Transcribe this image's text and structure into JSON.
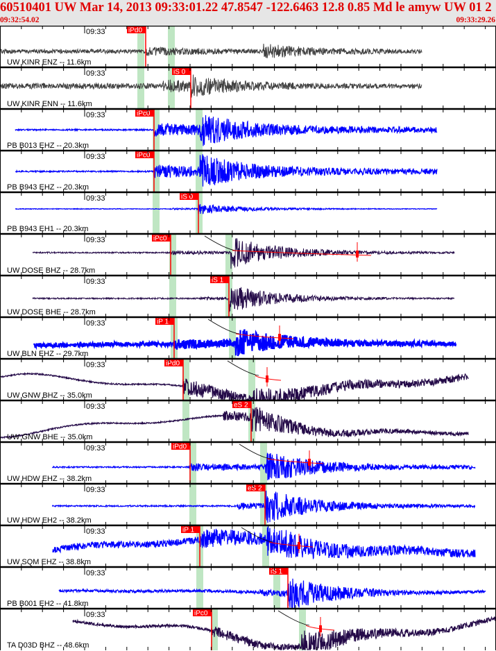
{
  "header": {
    "title": "60510401 UW Mar 14, 2013 09:33:01.22    47.8547 -122.6463 12.8 0.85 Md le amyw UW 01    2",
    "start_time": "09:32:54.02",
    "end_time": "09:33:29.26"
  },
  "tick_label": "09:33",
  "colors": {
    "pick": "#ff0000",
    "window": "#bfe6c3",
    "blue": "#0000ff",
    "purple": "#240a48",
    "gray": "#404040"
  },
  "panels": [
    {
      "station": "UW KINR ENZ -- 11.6km",
      "pick": "iPd0",
      "trace_color": "gray"
    },
    {
      "station": "UW KINR ENN -- 11.6km",
      "pick": "iS 0",
      "trace_color": "gray"
    },
    {
      "station": "PB B013 EHZ -- 20.3km",
      "pick": "iPc0",
      "trace_color": "blue"
    },
    {
      "station": "PB B943 EHZ -- 20.3km",
      "pick": "iPc0",
      "trace_color": "blue"
    },
    {
      "station": "PB B943 EH1 -- 20.3km",
      "pick": "iS 0",
      "trace_color": "blue"
    },
    {
      "station": "UW DOSE BHZ -- 28.7km",
      "pick": "iPc0",
      "trace_color": "purple"
    },
    {
      "station": "UW DOSE BHE -- 28.7km",
      "pick": "iS 1",
      "trace_color": "purple"
    },
    {
      "station": "UW BLN EHZ -- 29.7km",
      "pick": "iP 1",
      "trace_color": "blue"
    },
    {
      "station": "UW GNW BHZ -- 35.0km",
      "pick": "iPd0",
      "trace_color": "purple"
    },
    {
      "station": "UW GNW BHE -- 35.0km",
      "pick": "eS 2",
      "trace_color": "purple"
    },
    {
      "station": "UW HDW EHZ -- 38.2km",
      "pick": "iPd0",
      "trace_color": "blue"
    },
    {
      "station": "UW HDW EH2 -- 38.2km",
      "pick": "eS 2",
      "trace_color": "blue"
    },
    {
      "station": "UW SQM EHZ -- 38.8km",
      "pick": "iP 1",
      "trace_color": "blue"
    },
    {
      "station": "PB B001 EH2 -- 41.8km",
      "pick": "iS 1",
      "trace_color": "blue"
    },
    {
      "station": "TA D03D BHZ -- 48.6km",
      "pick": "iPc0",
      "trace_color": "purple"
    }
  ]
}
